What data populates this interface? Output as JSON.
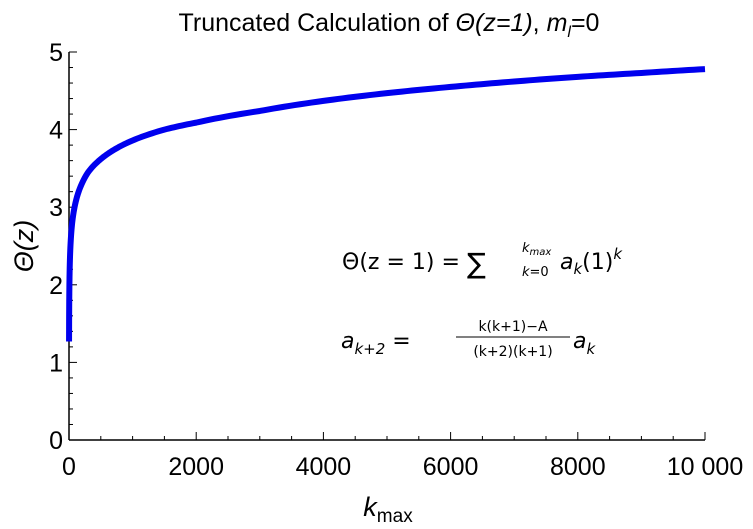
{
  "chart_data": {
    "type": "line",
    "title_parts": [
      "Truncated Calculation of ",
      "Θ(z=1)",
      ", ",
      "m",
      "l",
      "=0"
    ],
    "xlabel_parts": [
      "k",
      "max"
    ],
    "ylabel": "Θ(z)",
    "xlim": [
      0,
      10000
    ],
    "ylim": [
      0,
      5
    ],
    "x_ticks": [
      0,
      2000,
      4000,
      6000,
      8000,
      10000
    ],
    "x_tick_labels": [
      "0",
      "2000",
      "4000",
      "6000",
      "8000",
      "10 000"
    ],
    "y_ticks": [
      0,
      1,
      2,
      3,
      4,
      5
    ],
    "y_tick_labels": [
      "0",
      "1",
      "2",
      "3",
      "4",
      "5"
    ],
    "grid": false,
    "series": [
      {
        "color": "#0000ee",
        "x": [
          1,
          5,
          10,
          20,
          50,
          100,
          200,
          300,
          500,
          750,
          1000,
          1500,
          2000,
          3000,
          4000,
          5000,
          6000,
          7000,
          8000,
          9000,
          10000
        ],
        "y": [
          1.27,
          1.9,
          2.18,
          2.45,
          2.8,
          3.05,
          3.3,
          3.45,
          3.62,
          3.76,
          3.86,
          4.0,
          4.09,
          4.24,
          4.37,
          4.47,
          4.55,
          4.62,
          4.68,
          4.73,
          4.78
        ]
      }
    ],
    "annotations": {
      "sum_lhs": "Θ(z = 1) = ",
      "sum_sigma": "∑",
      "sum_upper": "k",
      "sum_upper_sub": "max",
      "sum_lower": "k=0",
      "sum_term_a": "a",
      "sum_term_sub": "k",
      "sum_term_paren": "(1)",
      "sum_term_exp": "k",
      "rec_lhs_a": "a",
      "rec_lhs_sub": "k+2",
      "rec_eq": " = ",
      "rec_num": "k(k+1)−A",
      "rec_den": "(k+2)(k+1)",
      "rec_rhs_a": "a",
      "rec_rhs_sub": "k"
    }
  }
}
